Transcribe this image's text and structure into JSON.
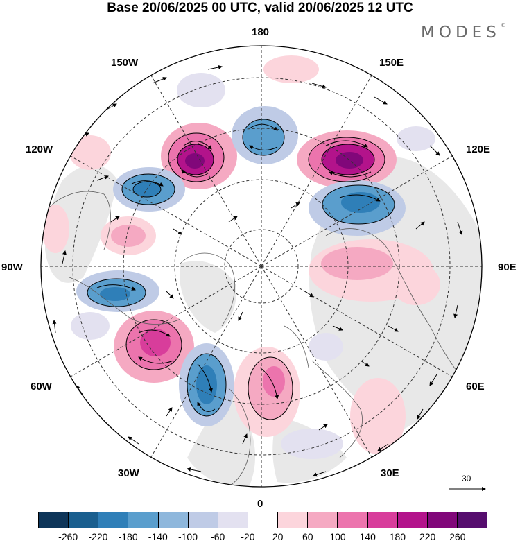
{
  "title": "Base 20/06/2025 00 UTC, valid 20/06/2025 12 UTC",
  "brand": "MODES",
  "brand_mark": "©",
  "longitude_labels": {
    "lon_180": "180",
    "lon_150w": "150W",
    "lon_150e": "150E",
    "lon_120w": "120W",
    "lon_120e": "120E",
    "lon_90w": "90W",
    "lon_90e": "90E",
    "lon_60w": "60W",
    "lon_60e": "60E",
    "lon_30w": "30W",
    "lon_30e": "30E",
    "lon_0": "0"
  },
  "reference_vector": {
    "label": "30"
  },
  "legend": {
    "colors": [
      "#0d3559",
      "#1a5f8f",
      "#2f7fb8",
      "#5a9ecd",
      "#8eb7dc",
      "#bfcbe6",
      "#e3e1f0",
      "#ffffff",
      "#fcd5dc",
      "#f5a9c2",
      "#ec74ad",
      "#d83d9b",
      "#b3138b",
      "#81077a",
      "#560d6e"
    ],
    "ticks": [
      "-260",
      "-220",
      "-180",
      "-140",
      "-100",
      "-60",
      "-20",
      "20",
      "60",
      "100",
      "140",
      "180",
      "220",
      "260"
    ]
  },
  "colors": {
    "land": "#e8e8e8",
    "graticule": "#333333",
    "coast": "#5a5a5a"
  }
}
